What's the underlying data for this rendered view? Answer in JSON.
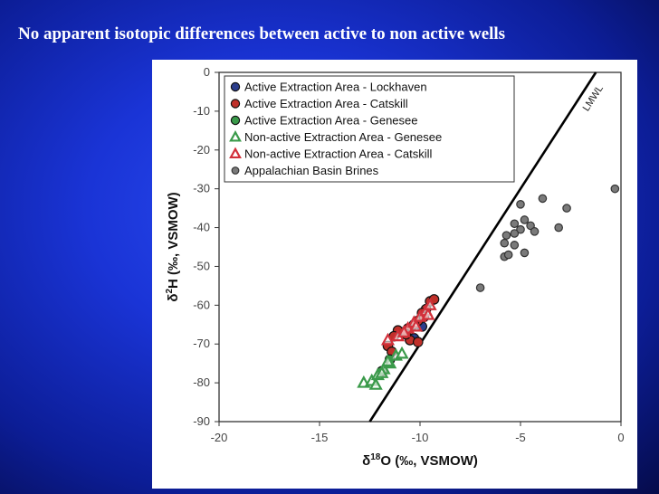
{
  "slide": {
    "title": "No apparent isotopic differences between active to non active wells"
  },
  "chart_data": {
    "type": "scatter",
    "xlabel": "δ18O (‰, VSMOW)",
    "ylabel": "δ2H (‰, VSMOW)",
    "xlim": [
      -20,
      0
    ],
    "ylim": [
      -90,
      0
    ],
    "x_ticks": [
      "-20",
      "-15",
      "-10",
      "-5",
      "0"
    ],
    "y_ticks": [
      "0",
      "-10",
      "-20",
      "-30",
      "-40",
      "-50",
      "-60",
      "-70",
      "-80",
      "-90"
    ],
    "grid": false,
    "legend_position": "top-left",
    "line": {
      "label": "LMWL",
      "slope": 8,
      "intercept": 10
    },
    "series": [
      {
        "name": "Active Extraction Area - Lockhaven",
        "marker": "circle",
        "fill": "#2c3e8c",
        "stroke": "#111111",
        "points": [
          [
            -10.3,
            -68.5
          ],
          [
            -9.9,
            -65.5
          ]
        ]
      },
      {
        "name": "Active Extraction Area - Catskill",
        "marker": "circle",
        "fill": "#c0302a",
        "stroke": "#111111",
        "points": [
          [
            -9.5,
            -59
          ],
          [
            -9.3,
            -58.5
          ],
          [
            -9.7,
            -61
          ],
          [
            -9.9,
            -62
          ],
          [
            -10.1,
            -64
          ],
          [
            -10.3,
            -65
          ],
          [
            -10.6,
            -66
          ],
          [
            -10.9,
            -67
          ],
          [
            -11.1,
            -66.5
          ],
          [
            -11.3,
            -68
          ],
          [
            -10.5,
            -69
          ],
          [
            -10.1,
            -69.5
          ],
          [
            -11.6,
            -70.5
          ],
          [
            -9.8,
            -63
          ],
          [
            -10.7,
            -67.5
          ],
          [
            -11.4,
            -72
          ]
        ]
      },
      {
        "name": "Active Extraction Area - Genesee",
        "marker": "circle",
        "fill": "#3a9a4a",
        "stroke": "#111111",
        "points": [
          [
            -11.5,
            -74
          ],
          [
            -11.9,
            -77
          ]
        ]
      },
      {
        "name": "Non-active Extraction Area - Genesee",
        "marker": "triangle",
        "fill": "none",
        "stroke": "#3a9a4a",
        "points": [
          [
            -12.8,
            -80
          ],
          [
            -12.4,
            -79.5
          ],
          [
            -12.1,
            -78
          ],
          [
            -11.8,
            -76.5
          ],
          [
            -11.5,
            -75
          ],
          [
            -11.2,
            -73
          ],
          [
            -10.9,
            -72.5
          ],
          [
            -11.6,
            -74.5
          ],
          [
            -12.2,
            -80.5
          ],
          [
            -11.9,
            -77.5
          ]
        ]
      },
      {
        "name": "Non-active Extraction Area - Catskill",
        "marker": "triangle",
        "fill": "none",
        "stroke": "#d2303a",
        "points": [
          [
            -11.6,
            -69
          ],
          [
            -11.1,
            -68
          ],
          [
            -10.6,
            -66
          ],
          [
            -10.3,
            -64.5
          ],
          [
            -10.0,
            -63
          ],
          [
            -9.7,
            -61.5
          ],
          [
            -9.5,
            -60
          ],
          [
            -9.6,
            -62.5
          ],
          [
            -10.2,
            -65.5
          ],
          [
            -10.8,
            -67
          ]
        ]
      },
      {
        "name": "Appalachian Basin Brines",
        "marker": "circle",
        "fill": "#7a7a7a",
        "stroke": "#333333",
        "points": [
          [
            -0.3,
            -30
          ],
          [
            -3.9,
            -32.5
          ],
          [
            -2.7,
            -35
          ],
          [
            -5.0,
            -34
          ],
          [
            -4.8,
            -38
          ],
          [
            -5.3,
            -39
          ],
          [
            -4.5,
            -39.5
          ],
          [
            -4.3,
            -41
          ],
          [
            -5.0,
            -40.5
          ],
          [
            -5.3,
            -41.5
          ],
          [
            -5.7,
            -42
          ],
          [
            -5.8,
            -44
          ],
          [
            -5.3,
            -44.5
          ],
          [
            -3.1,
            -40
          ],
          [
            -4.8,
            -46.5
          ],
          [
            -5.8,
            -47.5
          ],
          [
            -5.6,
            -47
          ],
          [
            -7.0,
            -55.5
          ]
        ]
      }
    ]
  }
}
